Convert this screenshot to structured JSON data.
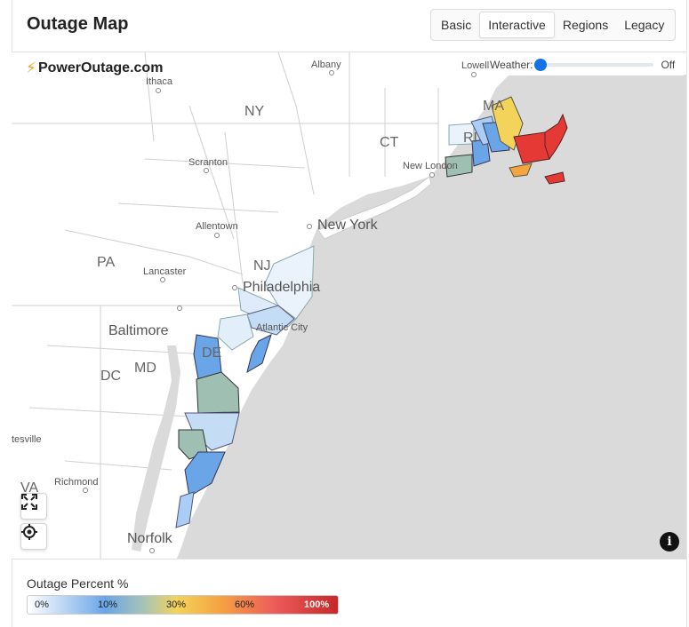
{
  "header": {
    "title": "Outage Map"
  },
  "tabs": [
    {
      "label": "Basic",
      "active": false
    },
    {
      "label": "Interactive",
      "active": true
    },
    {
      "label": "Regions",
      "active": false
    },
    {
      "label": "Legacy",
      "active": false
    }
  ],
  "map": {
    "brand": "PowerOutage.com",
    "weather": {
      "label": "Weather:",
      "value": "Off"
    },
    "states": [
      "NY",
      "MA",
      "CT",
      "RI",
      "PA",
      "NJ",
      "DE",
      "MD",
      "DC",
      "VA"
    ],
    "cities": [
      "Albany",
      "Lowell",
      "Ithaca",
      "Scranton",
      "New London",
      "Allentown",
      "Lancaster",
      "Atlantic City",
      "Richmond",
      "tesville"
    ],
    "big_cities": [
      "New York",
      "Philadelphia",
      "Baltimore",
      "Norfolk"
    ]
  },
  "legend": {
    "title": "Outage Percent %",
    "ticks": [
      "0%",
      "10%",
      "30%",
      "60%",
      "100%"
    ]
  },
  "colors": {
    "ocean": "#dadada",
    "low": "#c5dcf5",
    "mid_blue": "#6aa5e8",
    "teal": "#9fbfb3",
    "yellow": "#f3d35a",
    "orange": "#f5a442",
    "red": "#e53935"
  }
}
